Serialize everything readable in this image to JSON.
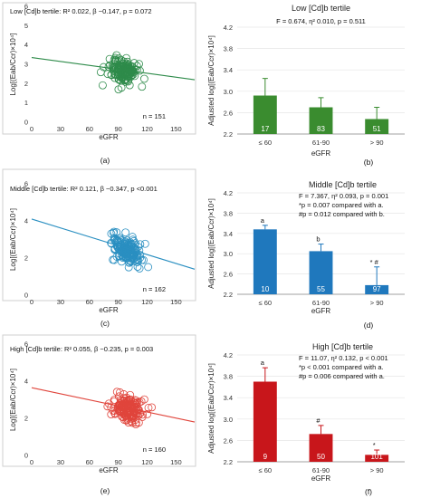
{
  "chart_data": [
    {
      "id": "a",
      "type": "scatter",
      "panel_label": "(a)",
      "title": "Low [Cd]b tertile: R² 0.022, β −0.147, p = 0.072",
      "title_parts": {
        "prefix": "Low [Cd]",
        "sub": "b",
        "stat1": " tertile: R",
        "sup": "2",
        "stat2": " 0.022, β −0.147, ",
        "p": "p",
        "stat3": " = 0.072"
      },
      "xlabel": "eGFR",
      "ylabel": "Log[(Eab/Ccr)×10⁴]",
      "xlim": [
        0,
        160
      ],
      "ylim": [
        0,
        6
      ],
      "xticks": [
        "0",
        "30",
        "60",
        "90",
        "120",
        "150"
      ],
      "yticks": [
        "0",
        "1",
        "2",
        "3",
        "4",
        "5",
        "6"
      ],
      "n_label": "n = 151",
      "n_value": 151,
      "color": "#2e8b4a",
      "regression": {
        "x1": 0,
        "y1": 3.35,
        "x2": 160,
        "y2": 2.2
      },
      "points_seed": 11,
      "cluster_center": [
        95,
        2.6
      ]
    },
    {
      "id": "b",
      "type": "bar",
      "panel_label": "(b)",
      "title": "Low [Cd]b tertile",
      "stats": "F = 0.674, η² 0.010, p = 0.511",
      "xlabel": "eGFR",
      "ylabel": "Adjusted log[(Eab/Ccr)×10⁴]",
      "ylim": [
        2.2,
        4.2
      ],
      "yticks": [
        "2.2",
        "2.6",
        "3.0",
        "3.4",
        "3.8",
        "4.2"
      ],
      "categories": [
        "≤ 60",
        "61-90",
        "> 90"
      ],
      "values": [
        2.92,
        2.7,
        2.48
      ],
      "errors": [
        0.32,
        0.18,
        0.22
      ],
      "n": [
        "17",
        "83",
        "51"
      ],
      "color": "#3a8c2f",
      "bar_annotations": [
        "",
        "",
        ""
      ]
    },
    {
      "id": "c",
      "type": "scatter",
      "panel_label": "(c)",
      "title": "Middle [Cd]b tertile: R² 0.121, β −0.347, p <0.001",
      "xlabel": "eGFR",
      "ylabel": "Log[(Eab/Ccr)×10⁴]",
      "xlim": [
        0,
        160
      ],
      "ylim": [
        0,
        6
      ],
      "xticks": [
        "0",
        "30",
        "60",
        "90",
        "120",
        "150"
      ],
      "yticks": [
        "0",
        "2",
        "4",
        "6"
      ],
      "n_label": "n = 162",
      "n_value": 162,
      "color": "#2a8fc1",
      "regression": {
        "x1": 0,
        "y1": 4.1,
        "x2": 160,
        "y2": 1.4
      },
      "points_seed": 23,
      "cluster_center": [
        100,
        2.5
      ]
    },
    {
      "id": "d",
      "type": "bar",
      "panel_label": "(d)",
      "title": "Middle [Cd]b tertile",
      "stats_lines": [
        "F = 7.367, η² 0.093, p = 0.001",
        "*p = 0.007 compared with a.",
        "#p = 0.012 compared with b."
      ],
      "xlabel": "eGFR",
      "ylabel": "Adjusted log[(Eab/Ccr)×10⁴]",
      "ylim": [
        2.2,
        4.2
      ],
      "yticks": [
        "2.2",
        "2.6",
        "3.0",
        "3.4",
        "3.8",
        "4.2"
      ],
      "categories": [
        "≤ 60",
        "61-90",
        "> 90"
      ],
      "category_lines": [
        [
          "≤ 60"
        ],
        [
          "61-90",
          "eGFR"
        ],
        [
          "> 90"
        ]
      ],
      "values": [
        3.48,
        3.05,
        2.38
      ],
      "errors": [
        0.08,
        0.14,
        0.36
      ],
      "n": [
        "10",
        "55",
        "97"
      ],
      "color": "#1f78bd",
      "bar_annotations": [
        "a",
        "b",
        "* #"
      ]
    },
    {
      "id": "e",
      "type": "scatter",
      "panel_label": "(e)",
      "title": "High [Cd]b tertile: R² 0.055, β −0.235, p = 0.003",
      "xlabel": "eGFR",
      "ylabel": "Log[(Eab/Ccr)×10⁴]",
      "xlim": [
        0,
        160
      ],
      "ylim": [
        0,
        6
      ],
      "xticks": [
        "0",
        "30",
        "60",
        "90",
        "120",
        "150"
      ],
      "yticks": [
        "0",
        "2",
        "4",
        "6"
      ],
      "n_label": "n = 160",
      "n_value": 160,
      "color": "#e0453c",
      "regression": {
        "x1": 0,
        "y1": 3.65,
        "x2": 160,
        "y2": 1.8
      },
      "points_seed": 37,
      "cluster_center": [
        100,
        2.5
      ]
    },
    {
      "id": "f",
      "type": "bar",
      "panel_label": "(f)",
      "title": "High [Cd]b tertile",
      "stats_lines": [
        "F = 11.07, η² 0.132, p < 0.001",
        "*p < 0.001 compared with a.",
        "#p = 0.006 compared with a."
      ],
      "xlabel": "eGFR",
      "ylabel": "Adjusted log[(Eab/Ccr)×10⁴]",
      "ylim": [
        2.2,
        4.2
      ],
      "yticks": [
        "2.2",
        "2.6",
        "3.0",
        "3.4",
        "3.8",
        "4.2"
      ],
      "categories": [
        "≤ 60",
        "61-90",
        "> 90"
      ],
      "category_lines": [
        [
          "≤ 60"
        ],
        [
          "61-90",
          "eGFR"
        ],
        [
          "> 90"
        ]
      ],
      "values": [
        3.7,
        2.72,
        2.33
      ],
      "errors": [
        0.26,
        0.16,
        0.09
      ],
      "n": [
        "9",
        "50",
        "101"
      ],
      "color": "#c8161b",
      "bar_annotations": [
        "a",
        "#",
        "*"
      ]
    }
  ]
}
